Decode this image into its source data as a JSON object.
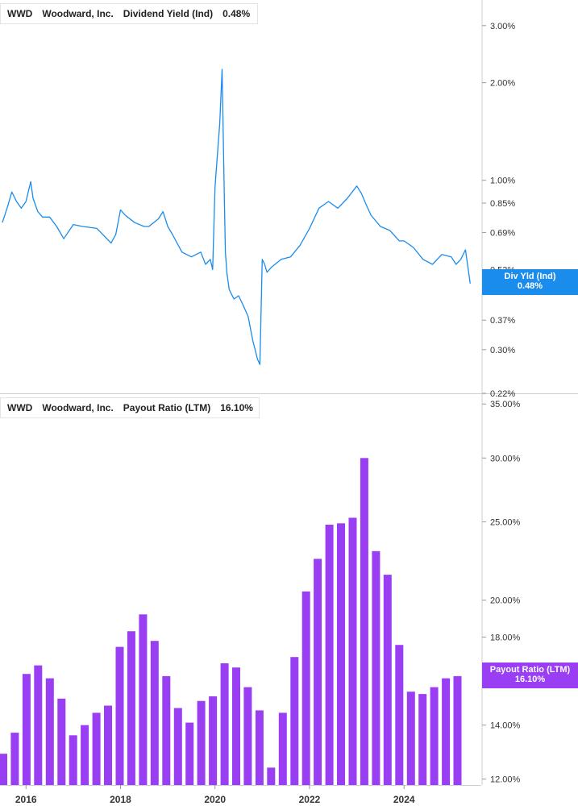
{
  "chart_data": [
    {
      "type": "line",
      "ticker": "WWD",
      "company": "Woodward, Inc.",
      "metric": "Dividend Yield (Ind)",
      "latest": "0.48%",
      "tag_label": "Div Yld (Ind)",
      "color": "#1a8cec",
      "scale": "log",
      "ylim": [
        0.22,
        3.6
      ],
      "yticks": [
        "3.00%",
        "2.00%",
        "1.00%",
        "0.85%",
        "0.69%",
        "0.53%",
        "0.37%",
        "0.30%",
        "0.22%"
      ],
      "ytick_values": [
        3.0,
        2.0,
        1.0,
        0.85,
        0.69,
        0.53,
        0.37,
        0.3,
        0.22
      ],
      "x": [
        2015.5,
        2015.6,
        2015.7,
        2015.8,
        2015.9,
        2016.0,
        2016.1,
        2016.15,
        2016.25,
        2016.35,
        2016.5,
        2016.65,
        2016.8,
        2017.0,
        2017.2,
        2017.5,
        2017.8,
        2017.9,
        2018.0,
        2018.1,
        2018.3,
        2018.5,
        2018.6,
        2018.8,
        2018.9,
        2019.0,
        2019.1,
        2019.3,
        2019.5,
        2019.7,
        2019.8,
        2019.9,
        2019.95,
        2020.0,
        2020.1,
        2020.15,
        2020.2,
        2020.22,
        2020.25,
        2020.3,
        2020.4,
        2020.5,
        2020.6,
        2020.7,
        2020.8,
        2020.9,
        2020.95,
        2021.0,
        2021.05,
        2021.1,
        2021.2,
        2021.4,
        2021.6,
        2021.8,
        2022.0,
        2022.2,
        2022.4,
        2022.6,
        2022.8,
        2023.0,
        2023.1,
        2023.2,
        2023.3,
        2023.5,
        2023.7,
        2023.9,
        2024.0,
        2024.2,
        2024.4,
        2024.6,
        2024.8,
        2025.0,
        2025.1,
        2025.2,
        2025.3,
        2025.4
      ],
      "values": [
        0.74,
        0.82,
        0.92,
        0.86,
        0.82,
        0.86,
        0.99,
        0.88,
        0.8,
        0.77,
        0.77,
        0.72,
        0.66,
        0.73,
        0.72,
        0.71,
        0.64,
        0.68,
        0.81,
        0.78,
        0.74,
        0.72,
        0.72,
        0.76,
        0.8,
        0.72,
        0.68,
        0.6,
        0.58,
        0.6,
        0.55,
        0.57,
        0.53,
        0.95,
        1.5,
        2.2,
        0.85,
        0.6,
        0.52,
        0.46,
        0.43,
        0.44,
        0.41,
        0.38,
        0.32,
        0.28,
        0.27,
        0.57,
        0.55,
        0.52,
        0.54,
        0.57,
        0.58,
        0.63,
        0.71,
        0.82,
        0.86,
        0.82,
        0.88,
        0.96,
        0.91,
        0.84,
        0.78,
        0.72,
        0.7,
        0.65,
        0.65,
        0.62,
        0.57,
        0.55,
        0.59,
        0.58,
        0.55,
        0.57,
        0.61,
        0.48
      ]
    },
    {
      "type": "bar",
      "ticker": "WWD",
      "company": "Woodward, Inc.",
      "metric": "Payout Ratio (LTM)",
      "latest": "16.10%",
      "tag_label": "Payout Ratio (LTM)",
      "color": "#9a3ef4",
      "scale": "log",
      "ylim": [
        11.8,
        36.0
      ],
      "yticks": [
        "35.00%",
        "30.00%",
        "25.00%",
        "20.00%",
        "18.00%",
        "14.00%",
        "12.00%"
      ],
      "ytick_values": [
        35,
        30,
        25,
        20,
        18,
        14,
        12
      ],
      "values": [
        12.9,
        13.7,
        16.2,
        16.6,
        16.0,
        15.1,
        13.6,
        14.0,
        14.5,
        14.8,
        17.5,
        18.3,
        19.2,
        17.8,
        16.1,
        14.7,
        14.1,
        15.0,
        15.2,
        16.7,
        16.5,
        15.6,
        14.6,
        12.4,
        14.5,
        17.0,
        20.5,
        22.5,
        24.8,
        24.9,
        25.3,
        30.0,
        23.0,
        21.5,
        17.6,
        15.4,
        15.3,
        15.6,
        16.0,
        16.1
      ],
      "xticks": [
        "2016",
        "2018",
        "2020",
        "2022",
        "2024"
      ],
      "xtick_values": [
        2016,
        2018,
        2020,
        2022,
        2024
      ]
    }
  ]
}
